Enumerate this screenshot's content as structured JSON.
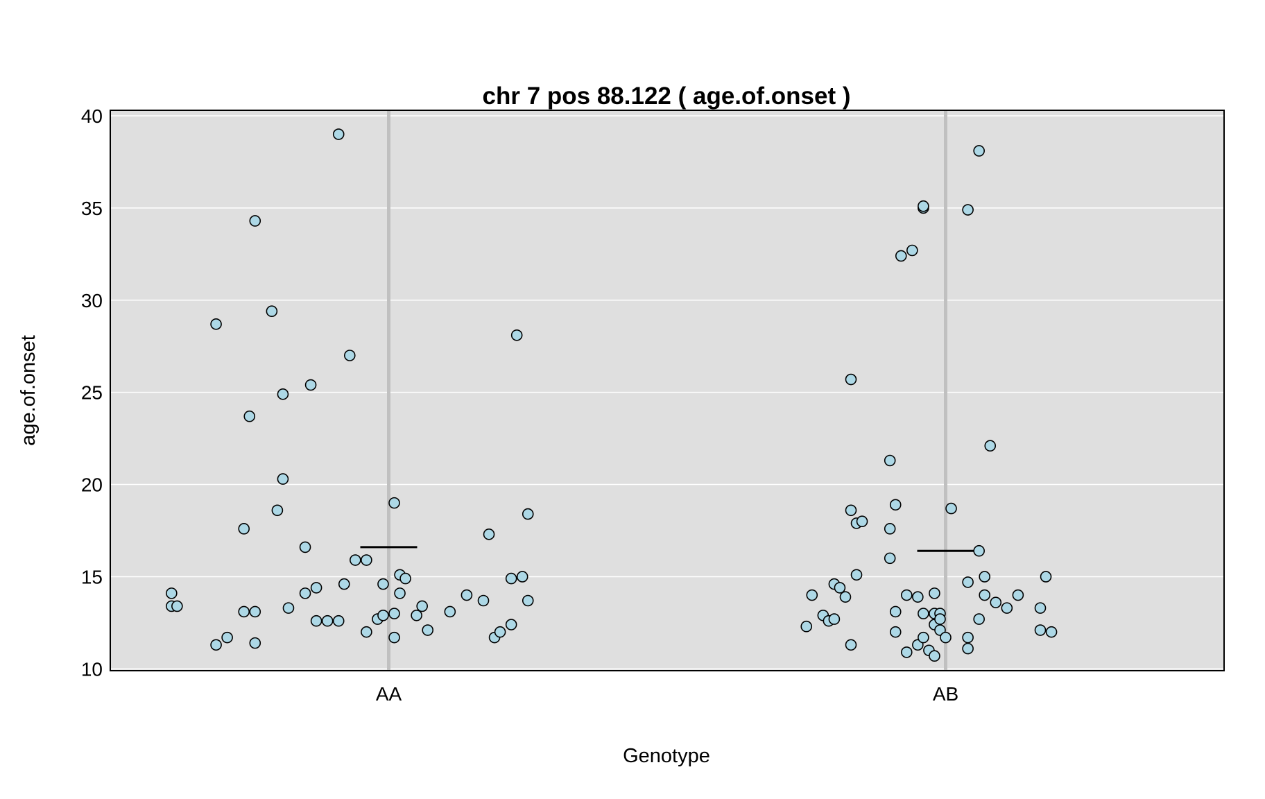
{
  "chart_data": {
    "type": "scatter",
    "title": "chr 7 pos 88.122 ( age.of.onset )",
    "xlabel": "Genotype",
    "ylabel": "age.of.onset",
    "categories": [
      "AA",
      "AB"
    ],
    "ylim": [
      9.9,
      40.3
    ],
    "yticks": [
      10,
      15,
      20,
      25,
      30,
      35,
      40
    ],
    "grid": true,
    "colors": {
      "panel": "#dfdfdf",
      "grid": "#ffffff",
      "category_line": "#c0c0c0",
      "point_fill": "#add8e6",
      "point_stroke": "#000000",
      "mean_line": "#000000"
    },
    "series": [
      {
        "category": "AA",
        "mean": 16.6,
        "points": [
          {
            "jitter": -0.39,
            "y": 14.1
          },
          {
            "jitter": -0.39,
            "y": 13.4
          },
          {
            "jitter": -0.38,
            "y": 13.4
          },
          {
            "jitter": -0.31,
            "y": 11.3
          },
          {
            "jitter": -0.29,
            "y": 11.7
          },
          {
            "jitter": -0.31,
            "y": 28.7
          },
          {
            "jitter": -0.26,
            "y": 13.1
          },
          {
            "jitter": -0.24,
            "y": 13.1
          },
          {
            "jitter": -0.24,
            "y": 11.4
          },
          {
            "jitter": -0.26,
            "y": 17.6
          },
          {
            "jitter": -0.25,
            "y": 23.7
          },
          {
            "jitter": -0.24,
            "y": 34.3
          },
          {
            "jitter": -0.21,
            "y": 29.4
          },
          {
            "jitter": -0.2,
            "y": 18.6
          },
          {
            "jitter": -0.19,
            "y": 20.3
          },
          {
            "jitter": -0.19,
            "y": 24.9
          },
          {
            "jitter": -0.18,
            "y": 13.3
          },
          {
            "jitter": -0.15,
            "y": 16.6
          },
          {
            "jitter": -0.15,
            "y": 14.1
          },
          {
            "jitter": -0.13,
            "y": 12.6
          },
          {
            "jitter": -0.13,
            "y": 14.4
          },
          {
            "jitter": -0.14,
            "y": 25.4
          },
          {
            "jitter": -0.11,
            "y": 12.6
          },
          {
            "jitter": -0.09,
            "y": 12.6
          },
          {
            "jitter": -0.08,
            "y": 14.6
          },
          {
            "jitter": -0.09,
            "y": 39.0
          },
          {
            "jitter": -0.07,
            "y": 27.0
          },
          {
            "jitter": -0.06,
            "y": 15.9
          },
          {
            "jitter": -0.04,
            "y": 15.9
          },
          {
            "jitter": -0.04,
            "y": 12.0
          },
          {
            "jitter": -0.02,
            "y": 12.7
          },
          {
            "jitter": -0.01,
            "y": 12.9
          },
          {
            "jitter": -0.01,
            "y": 14.6
          },
          {
            "jitter": 0.01,
            "y": 19.0
          },
          {
            "jitter": 0.01,
            "y": 13.0
          },
          {
            "jitter": 0.01,
            "y": 11.7
          },
          {
            "jitter": 0.02,
            "y": 14.1
          },
          {
            "jitter": 0.02,
            "y": 15.1
          },
          {
            "jitter": 0.03,
            "y": 14.9
          },
          {
            "jitter": 0.05,
            "y": 12.9
          },
          {
            "jitter": 0.06,
            "y": 13.4
          },
          {
            "jitter": 0.07,
            "y": 12.1
          },
          {
            "jitter": 0.11,
            "y": 13.1
          },
          {
            "jitter": 0.14,
            "y": 14.0
          },
          {
            "jitter": 0.17,
            "y": 13.7
          },
          {
            "jitter": 0.18,
            "y": 17.3
          },
          {
            "jitter": 0.19,
            "y": 11.7
          },
          {
            "jitter": 0.2,
            "y": 12.0
          },
          {
            "jitter": 0.22,
            "y": 12.4
          },
          {
            "jitter": 0.22,
            "y": 14.9
          },
          {
            "jitter": 0.24,
            "y": 15.0
          },
          {
            "jitter": 0.23,
            "y": 28.1
          },
          {
            "jitter": 0.25,
            "y": 18.4
          },
          {
            "jitter": 0.25,
            "y": 13.7
          }
        ]
      },
      {
        "category": "AB",
        "mean": 16.4,
        "points": [
          {
            "jitter": -0.25,
            "y": 12.3
          },
          {
            "jitter": -0.24,
            "y": 14.0
          },
          {
            "jitter": -0.22,
            "y": 12.9
          },
          {
            "jitter": -0.21,
            "y": 12.6
          },
          {
            "jitter": -0.2,
            "y": 12.7
          },
          {
            "jitter": -0.2,
            "y": 14.6
          },
          {
            "jitter": -0.19,
            "y": 14.4
          },
          {
            "jitter": -0.18,
            "y": 13.9
          },
          {
            "jitter": -0.17,
            "y": 11.3
          },
          {
            "jitter": -0.17,
            "y": 18.6
          },
          {
            "jitter": -0.17,
            "y": 25.7
          },
          {
            "jitter": -0.16,
            "y": 17.9
          },
          {
            "jitter": -0.16,
            "y": 15.1
          },
          {
            "jitter": -0.15,
            "y": 18.0
          },
          {
            "jitter": -0.1,
            "y": 16.0
          },
          {
            "jitter": -0.1,
            "y": 21.3
          },
          {
            "jitter": -0.1,
            "y": 17.6
          },
          {
            "jitter": -0.09,
            "y": 18.9
          },
          {
            "jitter": -0.09,
            "y": 12.0
          },
          {
            "jitter": -0.09,
            "y": 13.1
          },
          {
            "jitter": -0.07,
            "y": 10.9
          },
          {
            "jitter": -0.07,
            "y": 14.0
          },
          {
            "jitter": -0.08,
            "y": 32.4
          },
          {
            "jitter": -0.06,
            "y": 32.7
          },
          {
            "jitter": -0.05,
            "y": 13.9
          },
          {
            "jitter": -0.05,
            "y": 11.3
          },
          {
            "jitter": -0.04,
            "y": 13.0
          },
          {
            "jitter": -0.04,
            "y": 11.7
          },
          {
            "jitter": -0.04,
            "y": 35.0
          },
          {
            "jitter": -0.04,
            "y": 35.1
          },
          {
            "jitter": -0.03,
            "y": 11.0
          },
          {
            "jitter": -0.02,
            "y": 13.0
          },
          {
            "jitter": -0.02,
            "y": 12.4
          },
          {
            "jitter": -0.02,
            "y": 14.1
          },
          {
            "jitter": -0.02,
            "y": 10.7
          },
          {
            "jitter": -0.01,
            "y": 13.0
          },
          {
            "jitter": -0.01,
            "y": 12.7
          },
          {
            "jitter": -0.01,
            "y": 12.1
          },
          {
            "jitter": -0.0,
            "y": 11.7
          },
          {
            "jitter": 0.01,
            "y": 18.7
          },
          {
            "jitter": 0.04,
            "y": 34.9
          },
          {
            "jitter": 0.04,
            "y": 14.7
          },
          {
            "jitter": 0.04,
            "y": 11.1
          },
          {
            "jitter": 0.04,
            "y": 11.7
          },
          {
            "jitter": 0.06,
            "y": 38.1
          },
          {
            "jitter": 0.06,
            "y": 12.7
          },
          {
            "jitter": 0.06,
            "y": 16.4
          },
          {
            "jitter": 0.07,
            "y": 14.0
          },
          {
            "jitter": 0.07,
            "y": 15.0
          },
          {
            "jitter": 0.08,
            "y": 22.1
          },
          {
            "jitter": 0.09,
            "y": 13.6
          },
          {
            "jitter": 0.11,
            "y": 13.3
          },
          {
            "jitter": 0.13,
            "y": 14.0
          },
          {
            "jitter": 0.17,
            "y": 12.1
          },
          {
            "jitter": 0.17,
            "y": 13.3
          },
          {
            "jitter": 0.18,
            "y": 15.0
          },
          {
            "jitter": 0.19,
            "y": 12.0
          }
        ]
      }
    ]
  }
}
